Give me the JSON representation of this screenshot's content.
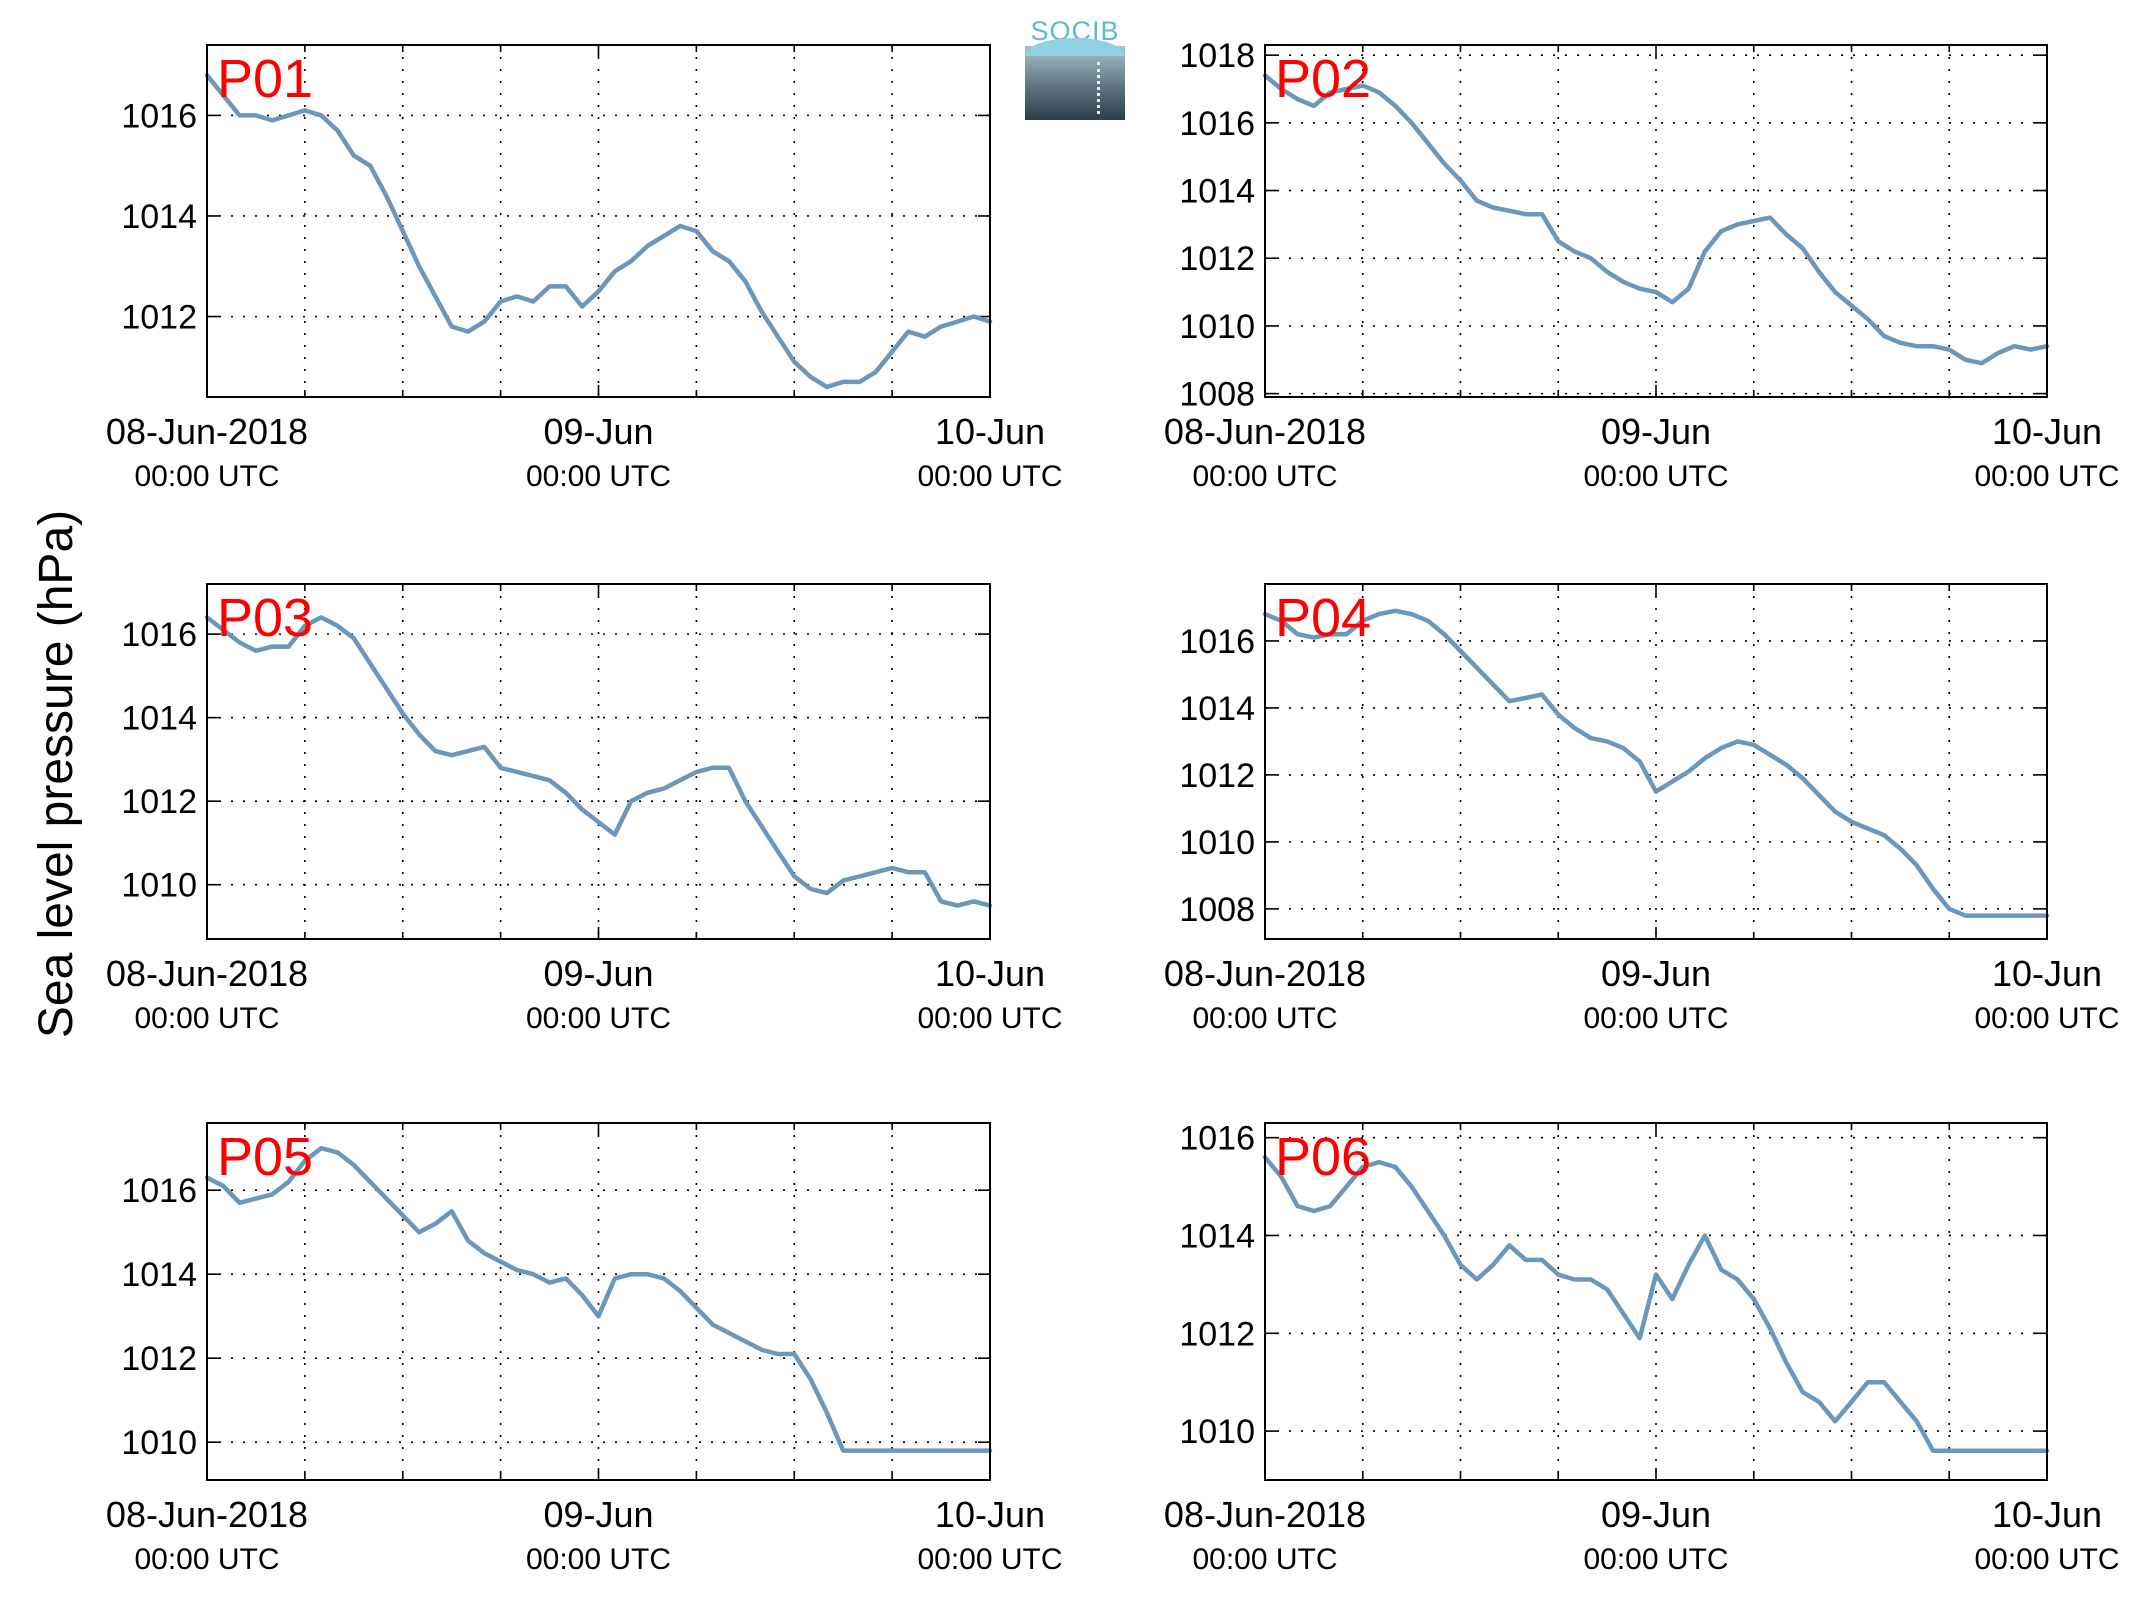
{
  "figure": {
    "ylabel": "Sea level pressure (hPa)",
    "logo_text": "SOCIB",
    "line_color": "#6b97bc",
    "label_color": "#ff0000"
  },
  "chart_data": [
    {
      "type": "line",
      "label": "P01",
      "ylim": [
        1010.4,
        1017.4
      ],
      "yticks": [
        "1012",
        "1014",
        "1016"
      ],
      "ytick_values": [
        1012,
        1014,
        1016
      ],
      "xlim_hours": [
        0,
        48
      ],
      "xticks": [
        {
          "line1": "08-Jun-2018",
          "line2": "00:00 UTC"
        },
        {
          "line1": "09-Jun",
          "line2": "00:00 UTC"
        },
        {
          "line1": "10-Jun",
          "line2": "00:00 UTC"
        }
      ],
      "x_hours": [
        0,
        1,
        2,
        3,
        4,
        5,
        6,
        7,
        8,
        9,
        10,
        11,
        12,
        13,
        14,
        15,
        16,
        17,
        18,
        19,
        20,
        21,
        22,
        23,
        24,
        25,
        26,
        27,
        28,
        29,
        30,
        31,
        32,
        33,
        34,
        35,
        36,
        37,
        38,
        39,
        40,
        41,
        42,
        43,
        44,
        45,
        46,
        47,
        48
      ],
      "y": [
        1016.8,
        1016.4,
        1016.0,
        1016.0,
        1015.9,
        1016.0,
        1016.1,
        1016.0,
        1015.7,
        1015.2,
        1015.0,
        1014.4,
        1013.7,
        1013.0,
        1012.4,
        1011.8,
        1011.7,
        1011.9,
        1012.3,
        1012.4,
        1012.3,
        1012.6,
        1012.6,
        1012.2,
        1012.5,
        1012.9,
        1013.1,
        1013.4,
        1013.6,
        1013.8,
        1013.7,
        1013.3,
        1013.1,
        1012.7,
        1012.1,
        1011.6,
        1011.1,
        1010.8,
        1010.6,
        1010.7,
        1010.7,
        1010.9,
        1011.3,
        1011.7,
        1011.6,
        1011.8,
        1011.9,
        1012.0,
        1011.9
      ]
    },
    {
      "type": "line",
      "label": "P02",
      "ylim": [
        1007.9,
        1018.3
      ],
      "yticks": [
        "1008",
        "1010",
        "1012",
        "1014",
        "1016",
        "1018"
      ],
      "ytick_values": [
        1008,
        1010,
        1012,
        1014,
        1016,
        1018
      ],
      "xlim_hours": [
        0,
        48
      ],
      "xticks": [
        {
          "line1": "08-Jun-2018",
          "line2": "00:00 UTC"
        },
        {
          "line1": "09-Jun",
          "line2": "00:00 UTC"
        },
        {
          "line1": "10-Jun",
          "line2": "00:00 UTC"
        }
      ],
      "x_hours": [
        0,
        1,
        2,
        3,
        4,
        5,
        6,
        7,
        8,
        9,
        10,
        11,
        12,
        13,
        14,
        15,
        16,
        17,
        18,
        19,
        20,
        21,
        22,
        23,
        24,
        25,
        26,
        27,
        28,
        29,
        30,
        31,
        32,
        33,
        34,
        35,
        36,
        37,
        38,
        39,
        40,
        41,
        42,
        43,
        44,
        45,
        46,
        47,
        48
      ],
      "y": [
        1017.4,
        1017.0,
        1016.7,
        1016.5,
        1016.9,
        1017.0,
        1017.1,
        1016.9,
        1016.5,
        1016.0,
        1015.4,
        1014.8,
        1014.3,
        1013.7,
        1013.5,
        1013.4,
        1013.3,
        1013.3,
        1012.5,
        1012.2,
        1012.0,
        1011.6,
        1011.3,
        1011.1,
        1011.0,
        1010.7,
        1011.1,
        1012.2,
        1012.8,
        1013.0,
        1013.1,
        1013.2,
        1012.7,
        1012.3,
        1011.6,
        1011.0,
        1010.6,
        1010.2,
        1009.7,
        1009.5,
        1009.4,
        1009.4,
        1009.3,
        1009.0,
        1008.9,
        1009.2,
        1009.4,
        1009.3,
        1009.4
      ]
    },
    {
      "type": "line",
      "label": "P03",
      "ylim": [
        1008.7,
        1017.2
      ],
      "yticks": [
        "1010",
        "1012",
        "1014",
        "1016"
      ],
      "ytick_values": [
        1010,
        1012,
        1014,
        1016
      ],
      "xlim_hours": [
        0,
        48
      ],
      "xticks": [
        {
          "line1": "08-Jun-2018",
          "line2": "00:00 UTC"
        },
        {
          "line1": "09-Jun",
          "line2": "00:00 UTC"
        },
        {
          "line1": "10-Jun",
          "line2": "00:00 UTC"
        }
      ],
      "x_hours": [
        0,
        1,
        2,
        3,
        4,
        5,
        6,
        7,
        8,
        9,
        10,
        11,
        12,
        13,
        14,
        15,
        16,
        17,
        18,
        19,
        20,
        21,
        22,
        23,
        24,
        25,
        26,
        27,
        28,
        29,
        30,
        31,
        32,
        33,
        34,
        35,
        36,
        37,
        38,
        39,
        40,
        41,
        42,
        43,
        44,
        45,
        46,
        47,
        48
      ],
      "y": [
        1016.4,
        1016.1,
        1015.8,
        1015.6,
        1015.7,
        1015.7,
        1016.2,
        1016.4,
        1016.2,
        1015.9,
        1015.3,
        1014.7,
        1014.1,
        1013.6,
        1013.2,
        1013.1,
        1013.2,
        1013.3,
        1012.8,
        1012.7,
        1012.6,
        1012.5,
        1012.2,
        1011.8,
        1011.5,
        1011.2,
        1012.0,
        1012.2,
        1012.3,
        1012.5,
        1012.7,
        1012.8,
        1012.8,
        1012.0,
        1011.4,
        1010.8,
        1010.2,
        1009.9,
        1009.8,
        1010.1,
        1010.2,
        1010.3,
        1010.4,
        1010.3,
        1010.3,
        1009.6,
        1009.5,
        1009.6,
        1009.5
      ]
    },
    {
      "type": "line",
      "label": "P04",
      "ylim": [
        1007.1,
        1017.7
      ],
      "yticks": [
        "1008",
        "1010",
        "1012",
        "1014",
        "1016"
      ],
      "ytick_values": [
        1008,
        1010,
        1012,
        1014,
        1016
      ],
      "xlim_hours": [
        0,
        48
      ],
      "xticks": [
        {
          "line1": "08-Jun-2018",
          "line2": "00:00 UTC"
        },
        {
          "line1": "09-Jun",
          "line2": "00:00 UTC"
        },
        {
          "line1": "10-Jun",
          "line2": "00:00 UTC"
        }
      ],
      "x_hours": [
        0,
        1,
        2,
        3,
        4,
        5,
        6,
        7,
        8,
        9,
        10,
        11,
        12,
        13,
        14,
        15,
        16,
        17,
        18,
        19,
        20,
        21,
        22,
        23,
        24,
        25,
        26,
        27,
        28,
        29,
        30,
        31,
        32,
        33,
        34,
        35,
        36,
        37,
        38,
        39,
        40,
        41,
        42,
        43,
        44,
        45,
        46,
        47,
        48
      ],
      "y": [
        1016.8,
        1016.6,
        1016.2,
        1016.1,
        1016.2,
        1016.2,
        1016.6,
        1016.8,
        1016.9,
        1016.8,
        1016.6,
        1016.2,
        1015.7,
        1015.2,
        1014.7,
        1014.2,
        1014.3,
        1014.4,
        1013.8,
        1013.4,
        1013.1,
        1013.0,
        1012.8,
        1012.4,
        1011.5,
        1011.8,
        1012.1,
        1012.5,
        1012.8,
        1013.0,
        1012.9,
        1012.6,
        1012.3,
        1011.9,
        1011.4,
        1010.9,
        1010.6,
        1010.4,
        1010.2,
        1009.8,
        1009.3,
        1008.6,
        1008.0,
        1007.8,
        1007.8,
        1007.8,
        1007.8,
        1007.8,
        1007.8
      ]
    },
    {
      "type": "line",
      "label": "P05",
      "ylim": [
        1009.1,
        1017.6
      ],
      "yticks": [
        "1010",
        "1012",
        "1014",
        "1016"
      ],
      "ytick_values": [
        1010,
        1012,
        1014,
        1016
      ],
      "xlim_hours": [
        0,
        48
      ],
      "xticks": [
        {
          "line1": "08-Jun-2018",
          "line2": "00:00 UTC"
        },
        {
          "line1": "09-Jun",
          "line2": "00:00 UTC"
        },
        {
          "line1": "10-Jun",
          "line2": "00:00 UTC"
        }
      ],
      "x_hours": [
        0,
        1,
        2,
        3,
        4,
        5,
        6,
        7,
        8,
        9,
        10,
        11,
        12,
        13,
        14,
        15,
        16,
        17,
        18,
        19,
        20,
        21,
        22,
        23,
        24,
        25,
        26,
        27,
        28,
        29,
        30,
        31,
        32,
        33,
        34,
        35,
        36,
        37,
        38,
        39,
        40,
        41,
        42,
        43,
        44,
        45,
        46,
        47,
        48
      ],
      "y": [
        1016.3,
        1016.1,
        1015.7,
        1015.8,
        1015.9,
        1016.2,
        1016.7,
        1017.0,
        1016.9,
        1016.6,
        1016.2,
        1015.8,
        1015.4,
        1015.0,
        1015.2,
        1015.5,
        1014.8,
        1014.5,
        1014.3,
        1014.1,
        1014.0,
        1013.8,
        1013.9,
        1013.5,
        1013.0,
        1013.9,
        1014.0,
        1014.0,
        1013.9,
        1013.6,
        1013.2,
        1012.8,
        1012.6,
        1012.4,
        1012.2,
        1012.1,
        1012.1,
        1011.5,
        1010.7,
        1009.8,
        1009.8,
        1009.8,
        1009.8,
        1009.8,
        1009.8,
        1009.8,
        1009.8,
        1009.8,
        1009.8
      ]
    },
    {
      "type": "line",
      "label": "P06",
      "ylim": [
        1009.0,
        1016.3
      ],
      "yticks": [
        "1010",
        "1012",
        "1014",
        "1016"
      ],
      "ytick_values": [
        1010,
        1012,
        1014,
        1016
      ],
      "xlim_hours": [
        0,
        48
      ],
      "xticks": [
        {
          "line1": "08-Jun-2018",
          "line2": "00:00 UTC"
        },
        {
          "line1": "09-Jun",
          "line2": "00:00 UTC"
        },
        {
          "line1": "10-Jun",
          "line2": "00:00 UTC"
        }
      ],
      "x_hours": [
        0,
        1,
        2,
        3,
        4,
        5,
        6,
        7,
        8,
        9,
        10,
        11,
        12,
        13,
        14,
        15,
        16,
        17,
        18,
        19,
        20,
        21,
        22,
        23,
        24,
        25,
        26,
        27,
        28,
        29,
        30,
        31,
        32,
        33,
        34,
        35,
        36,
        37,
        38,
        39,
        40,
        41,
        42,
        43,
        44,
        45,
        46,
        47,
        48
      ],
      "y": [
        1015.6,
        1015.2,
        1014.6,
        1014.5,
        1014.6,
        1015.0,
        1015.4,
        1015.5,
        1015.4,
        1015.0,
        1014.5,
        1014.0,
        1013.4,
        1013.1,
        1013.4,
        1013.8,
        1013.5,
        1013.5,
        1013.2,
        1013.1,
        1013.1,
        1012.9,
        1012.4,
        1011.9,
        1013.2,
        1012.7,
        1013.4,
        1014.0,
        1013.3,
        1013.1,
        1012.7,
        1012.1,
        1011.4,
        1010.8,
        1010.6,
        1010.2,
        1010.6,
        1011.0,
        1011.0,
        1010.6,
        1010.2,
        1009.6,
        1009.6,
        1009.6,
        1009.6,
        1009.6,
        1009.6,
        1009.6,
        1009.6
      ]
    }
  ]
}
